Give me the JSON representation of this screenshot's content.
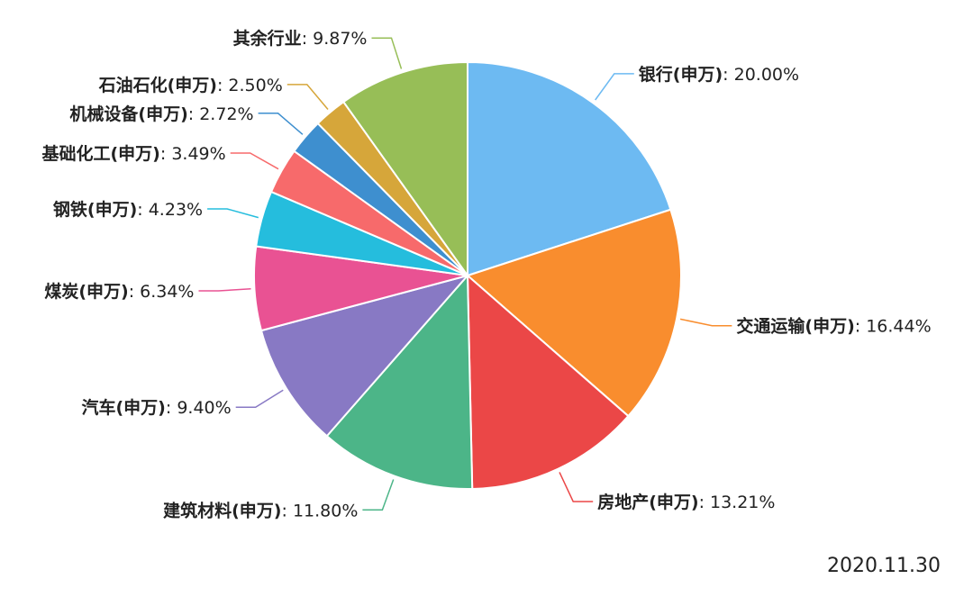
{
  "chart_data": {
    "type": "pie",
    "slices": [
      {
        "label": "银行(申万)",
        "value": 20.0,
        "display": "20.00%",
        "color": "#6DBAF2"
      },
      {
        "label": "交通运输(申万)",
        "value": 16.44,
        "display": "16.44%",
        "color": "#F98D2E"
      },
      {
        "label": "房地产(申万)",
        "value": 13.21,
        "display": "13.21%",
        "color": "#EB4747"
      },
      {
        "label": "建筑材料(申万)",
        "value": 11.8,
        "display": "11.80%",
        "color": "#4CB588"
      },
      {
        "label": "汽车(申万)",
        "value": 9.4,
        "display": "9.40%",
        "color": "#8879C4"
      },
      {
        "label": "煤炭(申万)",
        "value": 6.34,
        "display": "6.34%",
        "color": "#E95293"
      },
      {
        "label": "钢铁(申万)",
        "value": 4.23,
        "display": "4.23%",
        "color": "#25BDDD"
      },
      {
        "label": "基础化工(申万)",
        "value": 3.49,
        "display": "3.49%",
        "color": "#F76A6B"
      },
      {
        "label": "机械设备(申万)",
        "value": 2.72,
        "display": "2.72%",
        "color": "#3E8FCF"
      },
      {
        "label": "石油石化(申万)",
        "value": 2.5,
        "display": "2.50%",
        "color": "#D6A63A"
      },
      {
        "label": "其余行业",
        "value": 9.87,
        "display": "9.87%",
        "color": "#97BE57"
      }
    ]
  },
  "date": "2020.11.30"
}
